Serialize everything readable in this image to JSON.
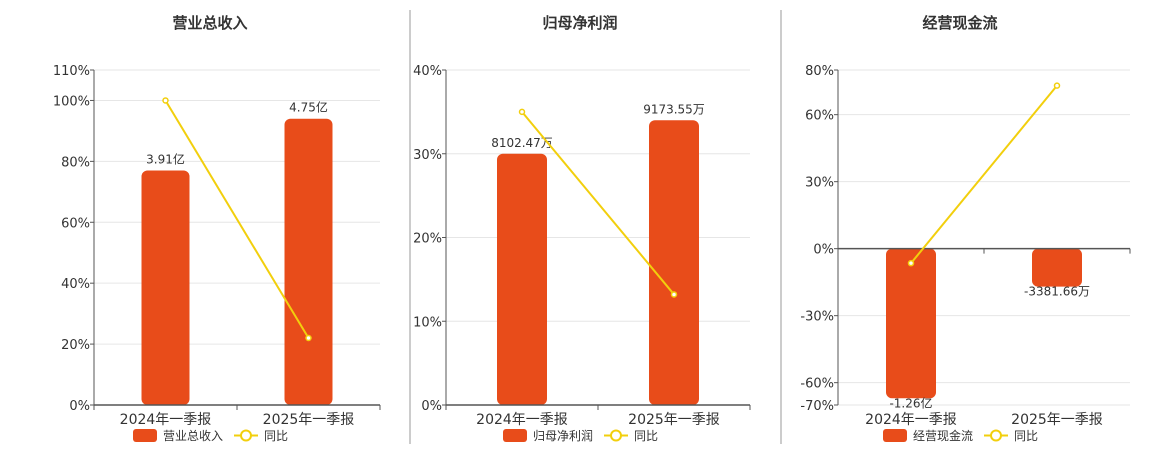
{
  "colors": {
    "bar": "#E84C1A",
    "line": "#F2CF0D",
    "grid": "#E6E6E6",
    "axis": "#555555",
    "divider": "#999999",
    "text": "#333333"
  },
  "chart_data": [
    {
      "type": "bar",
      "title": "营业总收入",
      "categories": [
        "2024年一季报",
        "2025年一季报"
      ],
      "ylim": [
        0,
        110
      ],
      "yticks": [
        0,
        20,
        40,
        60,
        80,
        100,
        110
      ],
      "ytick_labels": [
        "0%",
        "20%",
        "40%",
        "60%",
        "80%",
        "100%",
        "110%"
      ],
      "series": [
        {
          "name": "营业总收入",
          "kind": "bar",
          "values": [
            77,
            94
          ],
          "labels": [
            "3.91亿",
            "4.75亿"
          ]
        },
        {
          "name": "同比",
          "kind": "line",
          "values": [
            100,
            22
          ]
        }
      ],
      "legend": "bottom",
      "grid": true
    },
    {
      "type": "bar",
      "title": "归母净利润",
      "categories": [
        "2024年一季报",
        "2025年一季报"
      ],
      "ylim": [
        0,
        40
      ],
      "yticks": [
        0,
        10,
        20,
        30,
        40
      ],
      "ytick_labels": [
        "0%",
        "10%",
        "20%",
        "30%",
        "40%"
      ],
      "series": [
        {
          "name": "归母净利润",
          "kind": "bar",
          "values": [
            30,
            34
          ],
          "labels": [
            "8102.47万",
            "9173.55万"
          ]
        },
        {
          "name": "同比",
          "kind": "line",
          "values": [
            35,
            13.2
          ]
        }
      ],
      "legend": "bottom",
      "grid": true
    },
    {
      "type": "bar",
      "title": "经营现金流",
      "categories": [
        "2024年一季报",
        "2025年一季报"
      ],
      "ylim": [
        -70,
        80
      ],
      "yticks": [
        -70,
        -60,
        -30,
        0,
        30,
        60,
        80
      ],
      "ytick_labels": [
        "-70%",
        "-60%",
        "-30%",
        "0%",
        "30%",
        "60%",
        "80%"
      ],
      "series": [
        {
          "name": "经营现金流",
          "kind": "bar",
          "values": [
            -67,
            -17
          ],
          "labels": [
            "-1.26亿",
            "-3381.66万"
          ]
        },
        {
          "name": "同比",
          "kind": "line",
          "values": [
            -6.5,
            73
          ]
        }
      ],
      "legend": "bottom",
      "grid": true
    }
  ]
}
